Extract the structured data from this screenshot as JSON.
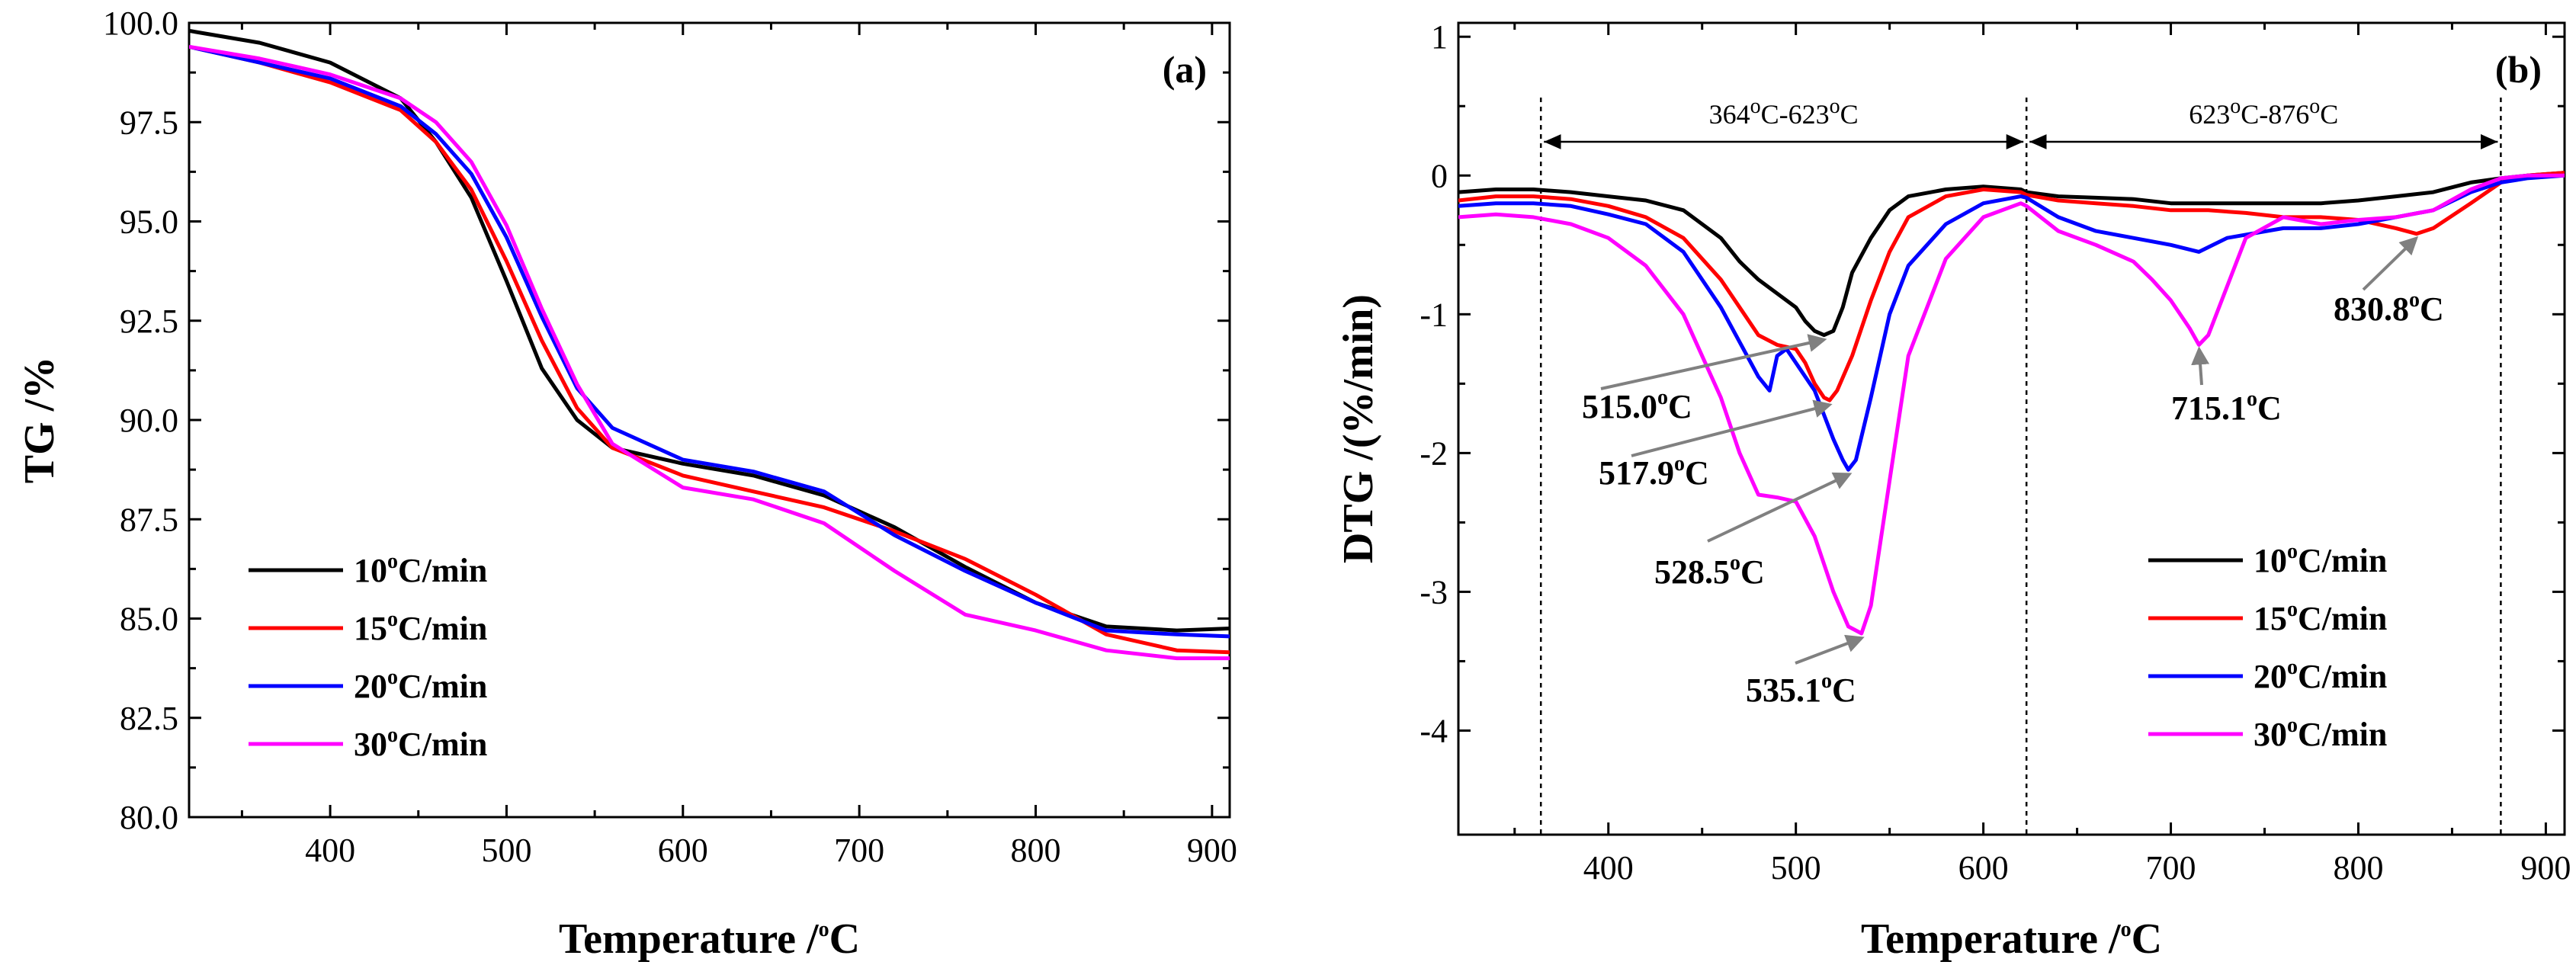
{
  "chart_data": [
    {
      "type": "line",
      "panel_label": "(a)",
      "xlabel": "Temperature /",
      "xlabel_sup": "o",
      "xlabel_tail": "C",
      "ylabel": "TG /%",
      "xlim": [
        320,
        910
      ],
      "ylim": [
        80,
        100
      ],
      "x_ticks": [
        400,
        500,
        600,
        700,
        800,
        900
      ],
      "y_ticks": [
        80.0,
        82.5,
        85.0,
        87.5,
        90.0,
        92.5,
        95.0,
        97.5,
        100.0
      ],
      "legend_position": "bottom-left",
      "series": [
        {
          "name": "10",
          "unit_sup": "o",
          "unit_tail": "C/min",
          "color": "#000000",
          "x": [
            320,
            360,
            400,
            440,
            460,
            480,
            500,
            520,
            540,
            560,
            600,
            640,
            680,
            720,
            760,
            800,
            840,
            880,
            910
          ],
          "y": [
            99.8,
            99.5,
            99.0,
            98.1,
            97.0,
            95.6,
            93.5,
            91.3,
            90.0,
            89.3,
            88.9,
            88.6,
            88.1,
            87.3,
            86.3,
            85.4,
            84.8,
            84.7,
            84.75
          ]
        },
        {
          "name": "15",
          "unit_sup": "o",
          "unit_tail": "C/min",
          "color": "#ff0000",
          "x": [
            320,
            360,
            400,
            440,
            460,
            480,
            500,
            520,
            540,
            560,
            600,
            640,
            680,
            720,
            760,
            800,
            840,
            880,
            910
          ],
          "y": [
            99.4,
            99.0,
            98.5,
            97.8,
            97.0,
            95.8,
            94.0,
            92.0,
            90.3,
            89.3,
            88.6,
            88.2,
            87.8,
            87.2,
            86.5,
            85.6,
            84.6,
            84.2,
            84.15
          ]
        },
        {
          "name": "20",
          "unit_sup": "o",
          "unit_tail": "C/min",
          "color": "#0000ff",
          "x": [
            320,
            360,
            400,
            440,
            460,
            480,
            500,
            520,
            540,
            560,
            600,
            640,
            680,
            720,
            760,
            800,
            840,
            880,
            910
          ],
          "y": [
            99.4,
            99.0,
            98.6,
            97.9,
            97.2,
            96.2,
            94.6,
            92.6,
            90.8,
            89.8,
            89.0,
            88.7,
            88.2,
            87.1,
            86.2,
            85.4,
            84.7,
            84.6,
            84.55
          ]
        },
        {
          "name": "30",
          "unit_sup": "o",
          "unit_tail": "C/min",
          "color": "#ff00ff",
          "x": [
            320,
            360,
            400,
            440,
            460,
            480,
            500,
            520,
            540,
            560,
            600,
            640,
            680,
            720,
            760,
            800,
            840,
            880,
            910
          ],
          "y": [
            99.4,
            99.1,
            98.7,
            98.1,
            97.5,
            96.5,
            94.9,
            92.8,
            90.9,
            89.4,
            88.3,
            88.0,
            87.4,
            86.2,
            85.1,
            84.7,
            84.2,
            84.0,
            84.0
          ]
        }
      ]
    },
    {
      "type": "line",
      "panel_label": "(b)",
      "xlabel": "Temperature /",
      "xlabel_sup": "o",
      "xlabel_tail": "C",
      "ylabel": "DTG /(%/min)",
      "xlim": [
        320,
        910
      ],
      "ylim": [
        -4.75,
        1.1
      ],
      "x_ticks": [
        400,
        500,
        600,
        700,
        800,
        900
      ],
      "y_ticks": [
        1,
        0,
        -1,
        -2,
        -3,
        -4
      ],
      "legend_position": "bottom-right",
      "reference_lines_x": [
        364,
        623,
        876
      ],
      "ranges": [
        {
          "from": 364,
          "to": 623,
          "label_a": "364",
          "label_b": "C-623",
          "label_c": "C",
          "sup": "o"
        },
        {
          "from": 623,
          "to": 876,
          "label_a": "623",
          "label_b": "C-876",
          "label_c": "C",
          "sup": "o"
        }
      ],
      "annotations": [
        {
          "value": "515.0",
          "sup": "o",
          "tail": "C",
          "x": 515.0,
          "y": -1.15
        },
        {
          "value": "517.9",
          "sup": "o",
          "tail": "C",
          "x": 517.9,
          "y": -1.62
        },
        {
          "value": "528.5",
          "sup": "o",
          "tail": "C",
          "x": 528.5,
          "y": -2.12
        },
        {
          "value": "535.1",
          "sup": "o",
          "tail": "C",
          "x": 535.1,
          "y": -3.3
        },
        {
          "value": "715.1",
          "sup": "o",
          "tail": "C",
          "x": 715.1,
          "y": -1.22
        },
        {
          "value": "830.8",
          "sup": "o",
          "tail": "C",
          "x": 830.8,
          "y": -0.42
        }
      ],
      "series": [
        {
          "name": "10",
          "unit_sup": "o",
          "unit_tail": "C/min",
          "color": "#000000",
          "x": [
            320,
            340,
            360,
            380,
            400,
            420,
            440,
            460,
            470,
            480,
            490,
            500,
            505,
            510,
            515,
            520,
            525,
            530,
            540,
            550,
            560,
            580,
            600,
            620,
            623,
            640,
            660,
            680,
            700,
            720,
            740,
            760,
            780,
            800,
            820,
            840,
            860,
            876,
            890,
            910
          ],
          "y": [
            -0.12,
            -0.1,
            -0.1,
            -0.12,
            -0.15,
            -0.18,
            -0.25,
            -0.45,
            -0.62,
            -0.75,
            -0.85,
            -0.95,
            -1.05,
            -1.12,
            -1.15,
            -1.12,
            -0.95,
            -0.7,
            -0.45,
            -0.25,
            -0.15,
            -0.1,
            -0.08,
            -0.1,
            -0.12,
            -0.15,
            -0.16,
            -0.17,
            -0.2,
            -0.2,
            -0.2,
            -0.2,
            -0.2,
            -0.18,
            -0.15,
            -0.12,
            -0.05,
            -0.02,
            0.0,
            0.02
          ]
        },
        {
          "name": "15",
          "unit_sup": "o",
          "unit_tail": "C/min",
          "color": "#ff0000",
          "x": [
            320,
            340,
            360,
            380,
            400,
            420,
            440,
            460,
            470,
            480,
            490,
            500,
            505,
            510,
            515,
            518,
            522,
            530,
            540,
            550,
            560,
            580,
            600,
            620,
            623,
            640,
            660,
            680,
            700,
            720,
            740,
            760,
            780,
            800,
            820,
            831,
            840,
            860,
            876,
            890,
            910
          ],
          "y": [
            -0.18,
            -0.15,
            -0.15,
            -0.17,
            -0.22,
            -0.3,
            -0.45,
            -0.75,
            -0.95,
            -1.15,
            -1.22,
            -1.25,
            -1.35,
            -1.5,
            -1.6,
            -1.62,
            -1.55,
            -1.3,
            -0.9,
            -0.55,
            -0.3,
            -0.15,
            -0.1,
            -0.12,
            -0.14,
            -0.18,
            -0.2,
            -0.22,
            -0.25,
            -0.25,
            -0.27,
            -0.3,
            -0.3,
            -0.32,
            -0.38,
            -0.42,
            -0.38,
            -0.2,
            -0.05,
            0.0,
            0.02
          ]
        },
        {
          "name": "20",
          "unit_sup": "o",
          "unit_tail": "C/min",
          "color": "#0000ff",
          "x": [
            320,
            340,
            360,
            380,
            400,
            420,
            440,
            460,
            470,
            480,
            486,
            490,
            495,
            500,
            510,
            520,
            525,
            528,
            532,
            540,
            550,
            560,
            580,
            600,
            620,
            623,
            640,
            660,
            680,
            700,
            715,
            730,
            760,
            780,
            800,
            820,
            840,
            860,
            876,
            890,
            910
          ],
          "y": [
            -0.22,
            -0.2,
            -0.2,
            -0.22,
            -0.28,
            -0.35,
            -0.55,
            -0.95,
            -1.2,
            -1.45,
            -1.55,
            -1.3,
            -1.25,
            -1.35,
            -1.55,
            -1.9,
            -2.05,
            -2.12,
            -2.05,
            -1.6,
            -1.0,
            -0.65,
            -0.35,
            -0.2,
            -0.15,
            -0.16,
            -0.3,
            -0.4,
            -0.45,
            -0.5,
            -0.55,
            -0.45,
            -0.38,
            -0.38,
            -0.35,
            -0.3,
            -0.25,
            -0.12,
            -0.05,
            -0.02,
            0.0
          ]
        },
        {
          "name": "30",
          "unit_sup": "o",
          "unit_tail": "C/min",
          "color": "#ff00ff",
          "x": [
            320,
            340,
            360,
            380,
            400,
            420,
            440,
            460,
            470,
            480,
            490,
            500,
            510,
            520,
            528,
            535,
            540,
            550,
            560,
            580,
            600,
            620,
            623,
            640,
            660,
            680,
            690,
            700,
            710,
            715,
            720,
            730,
            740,
            760,
            780,
            800,
            820,
            840,
            860,
            876,
            890,
            910
          ],
          "y": [
            -0.3,
            -0.28,
            -0.3,
            -0.35,
            -0.45,
            -0.65,
            -1.0,
            -1.6,
            -2.0,
            -2.3,
            -2.32,
            -2.35,
            -2.6,
            -3.0,
            -3.25,
            -3.3,
            -3.1,
            -2.2,
            -1.3,
            -0.6,
            -0.3,
            -0.2,
            -0.22,
            -0.4,
            -0.5,
            -0.62,
            -0.75,
            -0.9,
            -1.1,
            -1.22,
            -1.15,
            -0.8,
            -0.45,
            -0.3,
            -0.35,
            -0.32,
            -0.3,
            -0.25,
            -0.1,
            -0.02,
            0.0,
            0.0
          ]
        }
      ]
    }
  ]
}
